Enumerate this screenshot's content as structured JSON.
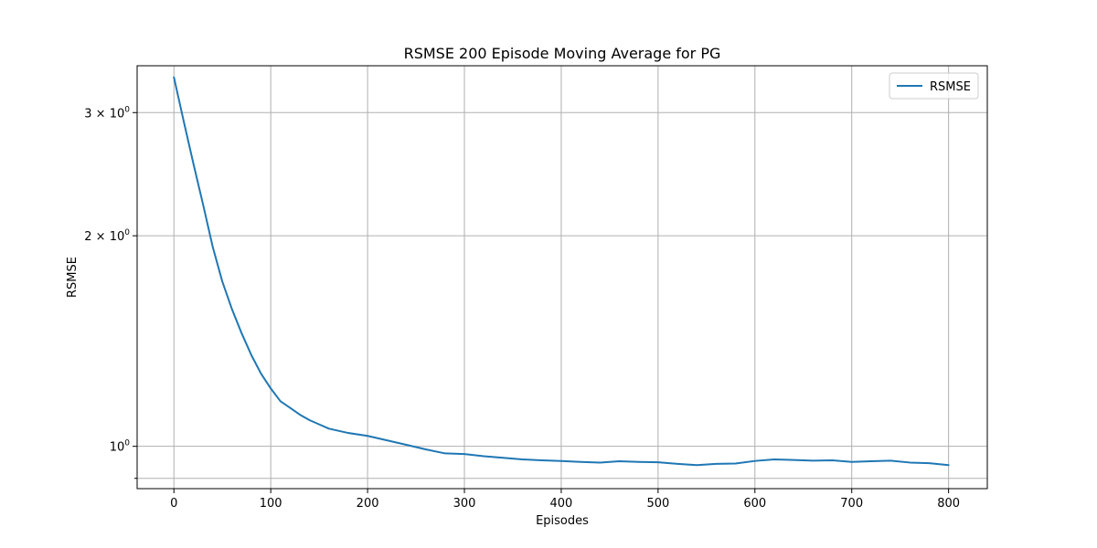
{
  "chart_data": {
    "type": "line",
    "title": "RSMSE 200 Episode Moving Average for PG",
    "xlabel": "Episodes",
    "ylabel": "RSMSE",
    "xlim": [
      -38,
      840
    ],
    "ylim": [
      0.87,
      3.5
    ],
    "y_scale": "log",
    "x_ticks": [
      0,
      100,
      200,
      300,
      400,
      500,
      600,
      700,
      800
    ],
    "x_tick_labels": [
      "0",
      "100",
      "200",
      "300",
      "400",
      "500",
      "600",
      "700",
      "800"
    ],
    "y_ticks": [
      1,
      2,
      3
    ],
    "y_tick_labels_base": [
      "1",
      "2",
      "3"
    ],
    "y_tick_labels_sci": [
      "10",
      "2 × 10",
      "3 × 10"
    ],
    "y_tick_exp": "0",
    "y_minor_ticks": [
      0.9
    ],
    "grid": true,
    "legend": {
      "position": "top-right",
      "entries": [
        "RSMSE"
      ]
    },
    "colors": {
      "series": "#1f77b4",
      "grid": "#b0b0b0"
    },
    "series": [
      {
        "name": "RSMSE",
        "x": [
          0,
          10,
          20,
          30,
          40,
          50,
          60,
          70,
          80,
          90,
          100,
          110,
          120,
          130,
          140,
          150,
          160,
          180,
          200,
          220,
          240,
          260,
          280,
          300,
          320,
          340,
          360,
          380,
          400,
          420,
          440,
          460,
          480,
          500,
          520,
          540,
          560,
          580,
          600,
          620,
          640,
          660,
          680,
          700,
          720,
          740,
          760,
          780,
          800
        ],
        "y": [
          3.37,
          2.92,
          2.54,
          2.22,
          1.93,
          1.72,
          1.57,
          1.45,
          1.35,
          1.27,
          1.21,
          1.16,
          1.135,
          1.11,
          1.09,
          1.075,
          1.06,
          1.045,
          1.035,
          1.02,
          1.005,
          0.99,
          0.977,
          0.975,
          0.968,
          0.963,
          0.958,
          0.955,
          0.953,
          0.95,
          0.948,
          0.952,
          0.95,
          0.949,
          0.944,
          0.94,
          0.944,
          0.945,
          0.953,
          0.958,
          0.956,
          0.954,
          0.955,
          0.95,
          0.952,
          0.954,
          0.948,
          0.946,
          0.94
        ]
      }
    ]
  }
}
